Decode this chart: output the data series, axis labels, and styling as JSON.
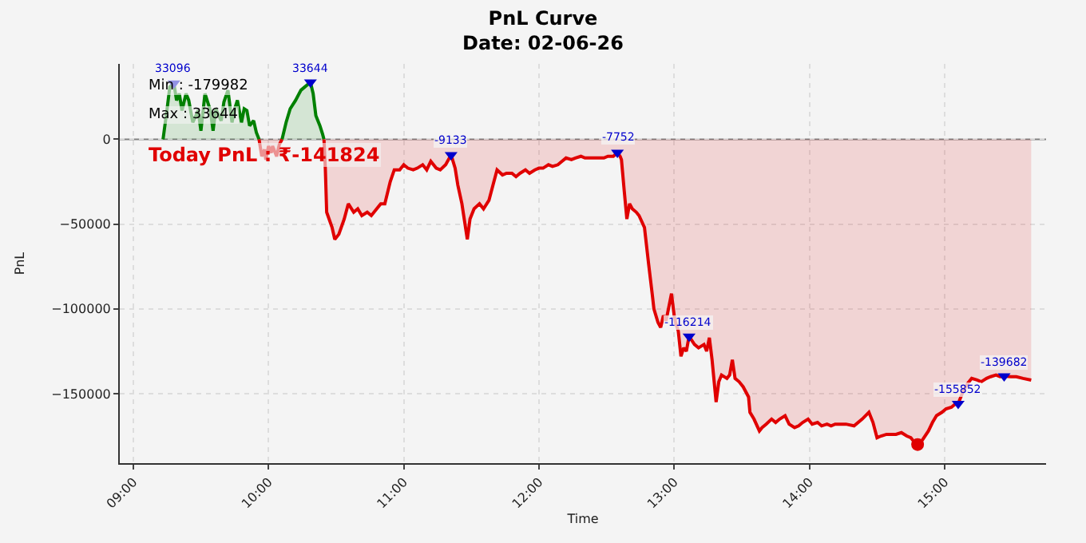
{
  "chart_data": {
    "type": "area",
    "title": "PnL Curve",
    "subtitle": "Date: 02-06-26",
    "xlabel": "Time",
    "ylabel": "PnL",
    "xlim": [
      8.9,
      15.75
    ],
    "xticks": [
      {
        "value": 9,
        "label": "09:00"
      },
      {
        "value": 10,
        "label": "10:00"
      },
      {
        "value": 11,
        "label": "11:00"
      },
      {
        "value": 12,
        "label": "12:00"
      },
      {
        "value": 13,
        "label": "13:00"
      },
      {
        "value": 14,
        "label": "14:00"
      },
      {
        "value": 15,
        "label": "15:00"
      }
    ],
    "ylim": [
      -191000,
      44500
    ],
    "yticks": [
      0,
      {
        "value": -50000,
        "label": "−50000"
      },
      {
        "value": -100000,
        "label": "−100000"
      },
      {
        "value": -150000,
        "label": "−150000"
      }
    ],
    "grid": true,
    "legend": false,
    "ref_lines": [
      {
        "axis": "y",
        "value": 0,
        "color": "#808080"
      }
    ],
    "annotations": [
      "Min : -179982",
      "Max : 33644",
      "Today PnL : ₹-141824"
    ],
    "series": [
      {
        "color": "#008000",
        "x": [
          9.22,
          9.25,
          9.27,
          9.3,
          9.32,
          9.34,
          9.36,
          9.39,
          9.41,
          9.44,
          9.48,
          9.5,
          9.53,
          9.57,
          9.59,
          9.61,
          9.65,
          9.67,
          9.7,
          9.73,
          9.75,
          9.77,
          9.8,
          9.82,
          9.84,
          9.86,
          9.89,
          9.91,
          9.93,
          10.0,
          10.1,
          10.13,
          10.16,
          10.2,
          10.24,
          10.27,
          10.31,
          10.33,
          10.35,
          10.38,
          10.4,
          10.41
        ],
        "values": [
          0,
          18000,
          31000,
          33096,
          23000,
          27000,
          17000,
          27000,
          23000,
          10000,
          17000,
          5000,
          27000,
          17000,
          5000,
          18000,
          11000,
          22000,
          29000,
          10000,
          18000,
          23000,
          10000,
          18000,
          17000,
          8000,
          11000,
          4000,
          0,
          null,
          0,
          10000,
          18000,
          23000,
          29000,
          31000,
          33644,
          27000,
          14000,
          8000,
          3000,
          0
        ]
      },
      {
        "color": "#e00000",
        "x": [
          9.93,
          9.95,
          9.97,
          9.98,
          10.0,
          10.02,
          10.03,
          10.06,
          10.08,
          10.1,
          10.2,
          10.41,
          10.42,
          10.43,
          10.47,
          10.49,
          10.52,
          10.56,
          10.59,
          10.63,
          10.66,
          10.69,
          10.73,
          10.76,
          10.8,
          10.83,
          10.86,
          10.9,
          10.93,
          10.97,
          11.0,
          11.03,
          11.07,
          11.1,
          11.14,
          11.17,
          11.2,
          11.24,
          11.27,
          11.31,
          11.35,
          11.38,
          11.4,
          11.43,
          11.47,
          11.49,
          11.52,
          11.56,
          11.59,
          11.63,
          11.66,
          11.69,
          11.73,
          11.76,
          11.8,
          11.83,
          11.86,
          11.9,
          11.93,
          11.97,
          12.0,
          12.03,
          12.07,
          12.1,
          12.14,
          12.17,
          12.2,
          12.24,
          12.27,
          12.31,
          12.34,
          12.38,
          12.41,
          12.44,
          12.48,
          12.51,
          12.55,
          12.58,
          12.6,
          12.61,
          12.63,
          12.65,
          12.67,
          12.69,
          12.72,
          12.74,
          12.78,
          12.81,
          12.84,
          12.85,
          12.88,
          12.9,
          12.92,
          12.94,
          12.97,
          12.98,
          13.0,
          13.01,
          13.03,
          13.05,
          13.07,
          13.09,
          13.11,
          13.15,
          13.18,
          13.22,
          13.24,
          13.26,
          13.28,
          13.31,
          13.33,
          13.35,
          13.39,
          13.41,
          13.43,
          13.45,
          13.48,
          13.51,
          13.55,
          13.56,
          13.59,
          13.63,
          13.65,
          13.68,
          13.72,
          13.75,
          13.78,
          13.82,
          13.85,
          13.89,
          13.92,
          13.95,
          13.99,
          14.02,
          14.06,
          14.09,
          14.13,
          14.16,
          14.19,
          14.23,
          14.27,
          14.33,
          14.39,
          14.44,
          14.47,
          14.5,
          14.53,
          14.57,
          14.6,
          14.64,
          14.68,
          14.72,
          14.75,
          14.77,
          14.8,
          14.83,
          14.88,
          14.91,
          14.94,
          14.98,
          15.01,
          15.05,
          15.08,
          15.1,
          15.14,
          15.17,
          15.2,
          15.24,
          15.27,
          15.31,
          15.34,
          15.38,
          15.41,
          15.44,
          15.49,
          15.53,
          15.58,
          15.64
        ],
        "values": [
          0,
          -10000,
          -6000,
          -12000,
          -4000,
          -8000,
          -4000,
          -10000,
          -3000,
          0,
          null,
          0,
          -17000,
          -43000,
          -52000,
          -59000,
          -56000,
          -47000,
          -38000,
          -43000,
          -41000,
          -45000,
          -43000,
          -45000,
          -41000,
          -38000,
          -38000,
          -25000,
          -18000,
          -18000,
          -15000,
          -17000,
          -18000,
          -17000,
          -15000,
          -18000,
          -13000,
          -17000,
          -18000,
          -15000,
          -9133,
          -17000,
          -27000,
          -38000,
          -59000,
          -47000,
          -41000,
          -38000,
          -41000,
          -36000,
          -27000,
          -18000,
          -21000,
          -20000,
          -20000,
          -22000,
          -20000,
          -18000,
          -20000,
          -18000,
          -17000,
          -17000,
          -15000,
          -16000,
          -15000,
          -13000,
          -11000,
          -12000,
          -11000,
          -10000,
          -11000,
          -11000,
          -11000,
          -11000,
          -11000,
          -10000,
          -10000,
          -7752,
          -10000,
          -12000,
          -30000,
          -47000,
          -38000,
          -41000,
          -43000,
          -45000,
          -52000,
          -73000,
          -93000,
          -100000,
          -108000,
          -111000,
          -104000,
          -107000,
          -95000,
          -91000,
          -104000,
          -108000,
          -113000,
          -128000,
          -123000,
          -125000,
          -116214,
          -121000,
          -123000,
          -121000,
          -125000,
          -117000,
          -130000,
          -155000,
          -143000,
          -139000,
          -141000,
          -139000,
          -130000,
          -141000,
          -143000,
          -146000,
          -152000,
          -161000,
          -165000,
          -172000,
          -170000,
          -168000,
          -165000,
          -167000,
          -165000,
          -163000,
          -168000,
          -170000,
          -169000,
          -167000,
          -165000,
          -168000,
          -167000,
          -169000,
          -168000,
          -169000,
          -168000,
          -168000,
          -168000,
          -169000,
          -165000,
          -161000,
          -167000,
          -176000,
          -175000,
          -174000,
          -174000,
          -174000,
          -173000,
          -175000,
          -176000,
          -178000,
          -180000,
          -178000,
          -172000,
          -167000,
          -163000,
          -161000,
          -159000,
          -158000,
          -156000,
          -155852,
          -148000,
          -144000,
          -141000,
          -142000,
          -143000,
          -141000,
          -140000,
          -139000,
          -140000,
          -139682,
          -140000,
          -140000,
          -141000,
          -142000
        ]
      },
      {
        "type": "scatter",
        "color": "#0000cc",
        "marker": "triangle",
        "x": [
          9.3,
          10.31,
          11.35,
          12.58,
          13.11,
          15.1,
          15.44
        ],
        "values": [
          33096,
          33644,
          -9133,
          -7752,
          -116214,
          -155852,
          -139682
        ],
        "value_labels": [
          "33096",
          "33644",
          "-9133",
          "-7752",
          "-116214",
          "-155852",
          "-139682"
        ]
      },
      {
        "type": "scatter",
        "color": "#e00000",
        "marker": "circle",
        "x": [
          14.8
        ],
        "values": [
          -180000
        ]
      }
    ]
  }
}
